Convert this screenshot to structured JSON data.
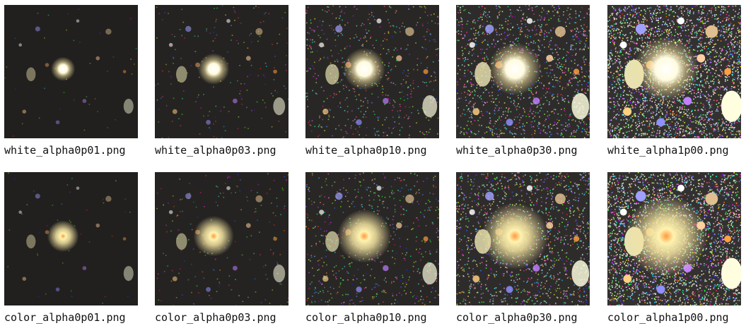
{
  "tiles": [
    {
      "label": "white_alpha0p01.png",
      "variant": "white",
      "alpha": 0.01
    },
    {
      "label": "white_alpha0p03.png",
      "variant": "white",
      "alpha": 0.03
    },
    {
      "label": "white_alpha0p10.png",
      "variant": "white",
      "alpha": 0.1
    },
    {
      "label": "white_alpha0p30.png",
      "variant": "white",
      "alpha": 0.3
    },
    {
      "label": "white_alpha1p00.png",
      "variant": "white",
      "alpha": 1.0
    },
    {
      "label": "color_alpha0p01.png",
      "variant": "color",
      "alpha": 0.01
    },
    {
      "label": "color_alpha0p03.png",
      "variant": "color",
      "alpha": 0.03
    },
    {
      "label": "color_alpha0p10.png",
      "variant": "color",
      "alpha": 0.1
    },
    {
      "label": "color_alpha0p30.png",
      "variant": "color",
      "alpha": 0.3
    },
    {
      "label": "color_alpha1p00.png",
      "variant": "color",
      "alpha": 1.0
    }
  ],
  "colors": {
    "background": "#ffffff",
    "sky": "#1f1f1f",
    "galaxy_core": "#fffbe0",
    "galaxy_halo": "#f3e3a0"
  }
}
